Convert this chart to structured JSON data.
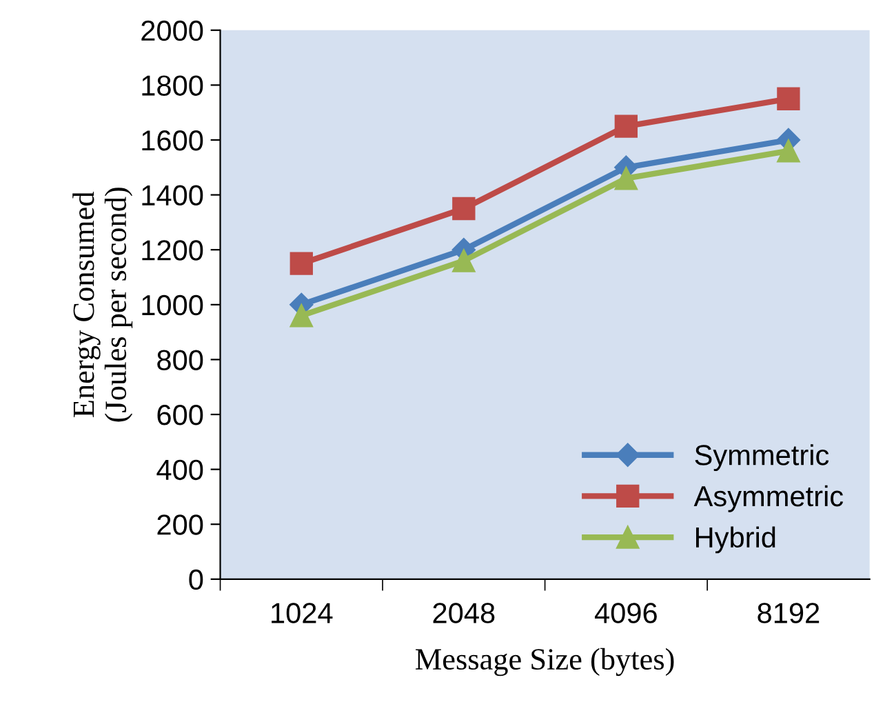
{
  "chart_data": {
    "type": "line",
    "xlabel": "Message Size (bytes)",
    "ylabel": "Energy Consumed\n(Joules per second)",
    "categories": [
      "1024",
      "2048",
      "4096",
      "8192"
    ],
    "series": [
      {
        "name": "Symmetric",
        "color": "#4a7ebb",
        "marker": "diamond",
        "values": [
          1000,
          1200,
          1500,
          1600
        ]
      },
      {
        "name": "Asymmetric",
        "color": "#be4b48",
        "marker": "square",
        "values": [
          1150,
          1350,
          1650,
          1750
        ]
      },
      {
        "name": "Hybrid",
        "color": "#98b954",
        "marker": "triangle",
        "values": [
          960,
          1160,
          1460,
          1560
        ]
      }
    ],
    "ylim": [
      0,
      2000
    ],
    "yticks": [
      0,
      200,
      400,
      600,
      800,
      1000,
      1200,
      1400,
      1600,
      1800,
      2000
    ],
    "grid": false,
    "legend": "bottom right",
    "line_style": "solid"
  }
}
